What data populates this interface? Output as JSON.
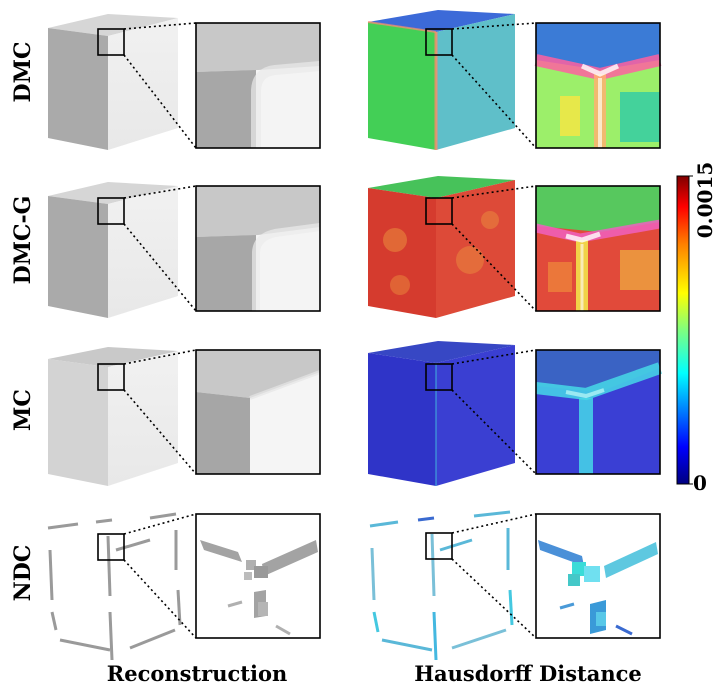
{
  "figure": {
    "rows": [
      {
        "label": "DMC",
        "hausdorff_side": "#43cf56",
        "hausdorff_front": "#5fbfc9",
        "hausdorff_top": "#3c6ad8"
      },
      {
        "label": "DMC-G",
        "hausdorff_side": "#d53b2e",
        "hausdorff_front": "#dd4a38",
        "hausdorff_top": "#47c25a"
      },
      {
        "label": "MC",
        "hausdorff_side": "#2f34c8",
        "hausdorff_front": "#3a3fd2",
        "hausdorff_top": "#3747c4"
      },
      {
        "label": "NDC"
      }
    ],
    "columns": [
      {
        "label": "Reconstruction"
      },
      {
        "label": "Hausdorff Distance"
      }
    ],
    "colorbar": {
      "max_label": "0.0015",
      "min_label": "0",
      "colormap": "jet",
      "range": [
        0,
        0.0015
      ],
      "colors": [
        "#00007f",
        "#0000ff",
        "#00ffff",
        "#7fff7f",
        "#ffff00",
        "#ff7f00",
        "#ff0000",
        "#7f0000"
      ]
    }
  }
}
